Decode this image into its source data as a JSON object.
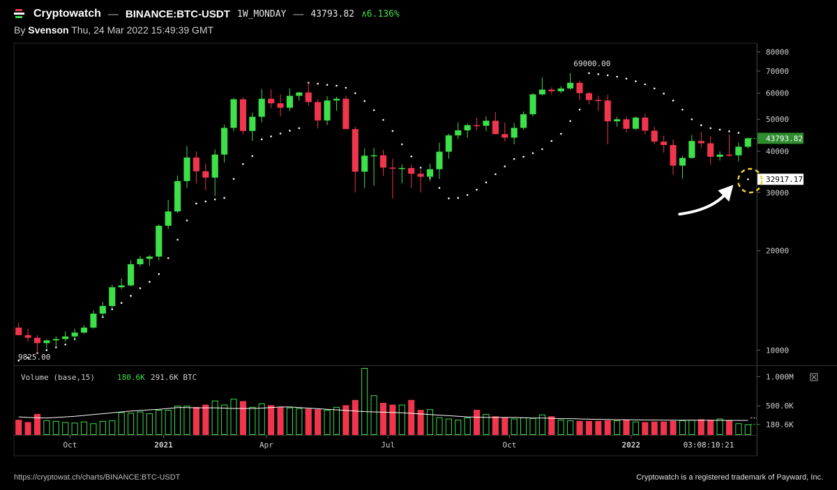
{
  "header": {
    "brand": "Cryptowatch",
    "separator": "—",
    "pair": "BINANCE:BTC-USDT",
    "interval": "1W_MONDAY",
    "price": "43793.82",
    "change": "∧6.136%"
  },
  "byline": {
    "prefix": "By ",
    "author": "Svenson",
    "date": "Thu, 24 Mar 2022 15:49:39 GMT"
  },
  "footer": {
    "url": "https://cryptowat.ch/charts/BINANCE:BTC-USDT",
    "trademark": "Cryptowatch is a registered trademark of Payward, Inc."
  },
  "colors": {
    "up": "#3ee04a",
    "down": "#f0364d",
    "sar": "#ffffff",
    "grid": "#2a2a2a",
    "highlight": "#f2d22e"
  },
  "chart_data": [
    {
      "type": "candlestick",
      "title": "",
      "scale": "log",
      "ylim": [
        9000,
        85000
      ],
      "y_ticks": [
        "80000",
        "70000",
        "60000",
        "50000",
        "40000",
        "30000",
        "20000",
        "10000"
      ],
      "x_ticks": [
        "Oct",
        "2021",
        "Apr",
        "Jul",
        "Oct",
        "2022"
      ],
      "time_label": "03:08:10:21",
      "annotations": {
        "high": "69000.00",
        "low": "9825.00",
        "last_price": "43793.82",
        "sar_price": "32917.17"
      },
      "candles": [
        [
          11700,
          12100,
          11400,
          11100
        ],
        [
          11100,
          11600,
          10600,
          10900
        ],
        [
          10900,
          11100,
          9800,
          10500
        ],
        [
          10500,
          10800,
          10100,
          10700
        ],
        [
          10700,
          11000,
          10300,
          10800
        ],
        [
          10800,
          11400,
          10600,
          11000
        ],
        [
          11000,
          11600,
          10700,
          11300
        ],
        [
          11300,
          11900,
          11200,
          11700
        ],
        [
          11700,
          13200,
          11600,
          12900
        ],
        [
          12900,
          14000,
          12600,
          13600
        ],
        [
          13600,
          15800,
          13400,
          15500
        ],
        [
          15500,
          16500,
          15300,
          15700
        ],
        [
          15700,
          18700,
          15600,
          18200
        ],
        [
          18200,
          19300,
          17900,
          18900
        ],
        [
          18900,
          19400,
          18000,
          19200
        ],
        [
          19200,
          24000,
          18700,
          23800
        ],
        [
          23800,
          28500,
          23300,
          26300
        ],
        [
          26300,
          33800,
          26000,
          32500
        ],
        [
          32500,
          41500,
          31000,
          38300
        ],
        [
          38300,
          40000,
          32000,
          34800
        ],
        [
          34800,
          36800,
          30500,
          33300
        ],
        [
          33300,
          40500,
          29300,
          39100
        ],
        [
          39100,
          48200,
          37000,
          47100
        ],
        [
          47100,
          58000,
          46000,
          57500
        ],
        [
          57500,
          58300,
          45000,
          46100
        ],
        [
          46100,
          52400,
          43000,
          50900
        ],
        [
          50900,
          61800,
          49000,
          57700
        ],
        [
          57700,
          61600,
          54000,
          55900
        ],
        [
          55900,
          59500,
          51000,
          54200
        ],
        [
          54200,
          62000,
          53000,
          58900
        ],
        [
          58900,
          60500,
          57000,
          60300
        ],
        [
          60300,
          64500,
          55000,
          56400
        ],
        [
          56400,
          57500,
          46900,
          49600
        ],
        [
          49600,
          58800,
          48000,
          57000
        ],
        [
          57000,
          58500,
          53000,
          57700
        ],
        [
          57700,
          58800,
          47000,
          46700
        ],
        [
          46700,
          47500,
          30000,
          34700
        ],
        [
          34700,
          40800,
          31000,
          38800
        ],
        [
          38800,
          41000,
          31500,
          38900
        ],
        [
          38900,
          40400,
          33700,
          35700
        ],
        [
          35700,
          38000,
          28800,
          35500
        ],
        [
          35500,
          36500,
          32000,
          35600
        ],
        [
          35600,
          36500,
          31000,
          34200
        ],
        [
          34200,
          35200,
          30000,
          33500
        ],
        [
          33500,
          36700,
          32500,
          35300
        ],
        [
          35300,
          42500,
          33000,
          39900
        ],
        [
          39900,
          45200,
          38000,
          44700
        ],
        [
          44700,
          49000,
          43500,
          46300
        ],
        [
          46300,
          48500,
          44000,
          48000
        ],
        [
          48000,
          50500,
          46500,
          47800
        ],
        [
          47800,
          51000,
          46000,
          49500
        ],
        [
          49500,
          52600,
          45000,
          45100
        ],
        [
          45100,
          48900,
          42800,
          44000
        ],
        [
          44000,
          48800,
          42000,
          47100
        ],
        [
          47100,
          52800,
          46500,
          51800
        ],
        [
          51800,
          60000,
          51000,
          59500
        ],
        [
          59500,
          67000,
          59000,
          61500
        ],
        [
          61500,
          62500,
          59500,
          60800
        ],
        [
          60800,
          63000,
          60000,
          62000
        ],
        [
          62000,
          69000,
          61500,
          64500
        ],
        [
          64500,
          65500,
          57000,
          60000
        ],
        [
          60000,
          60500,
          55500,
          57200
        ],
        [
          57200,
          59000,
          53000,
          57000
        ],
        [
          57000,
          59300,
          42000,
          49300
        ],
        [
          49300,
          50900,
          47500,
          50000
        ],
        [
          50000,
          51000,
          45600,
          46800
        ],
        [
          46800,
          51000,
          46500,
          50600
        ],
        [
          50600,
          52000,
          45000,
          46200
        ],
        [
          46200,
          47500,
          42000,
          42800
        ],
        [
          42800,
          44600,
          39600,
          41800
        ],
        [
          41800,
          43500,
          34000,
          36200
        ],
        [
          36200,
          38800,
          33000,
          38200
        ],
        [
          38200,
          44800,
          38000,
          43000
        ],
        [
          43000,
          45800,
          41000,
          42300
        ],
        [
          42300,
          44500,
          36500,
          38500
        ],
        [
          38500,
          40000,
          37500,
          39100
        ],
        [
          39100,
          45000,
          38500,
          38900
        ],
        [
          38900,
          42500,
          37300,
          41300
        ],
        [
          41300,
          44000,
          40800,
          43800
        ]
      ],
      "sar": [
        [
          0,
          9300
        ],
        [
          1,
          9500
        ],
        [
          2,
          9800
        ],
        [
          3,
          10000
        ],
        [
          4,
          10200
        ],
        [
          5,
          10400
        ],
        [
          6,
          10800
        ],
        [
          7,
          11400
        ],
        [
          8,
          12000
        ],
        [
          9,
          12600
        ],
        [
          10,
          13300
        ],
        [
          11,
          13900
        ],
        [
          12,
          14600
        ],
        [
          13,
          15400
        ],
        [
          14,
          16100
        ],
        [
          15,
          17000
        ],
        [
          16,
          19000
        ],
        [
          17,
          21600
        ],
        [
          18,
          24700
        ],
        [
          19,
          27800
        ],
        [
          20,
          28200
        ],
        [
          21,
          28600
        ],
        [
          22,
          28900
        ],
        [
          23,
          33000
        ],
        [
          24,
          36600
        ],
        [
          25,
          38700
        ],
        [
          26,
          43500
        ],
        [
          27,
          44400
        ],
        [
          28,
          45300
        ],
        [
          29,
          46200
        ],
        [
          30,
          47000
        ],
        [
          31,
          64500
        ],
        [
          32,
          64100
        ],
        [
          33,
          63600
        ],
        [
          34,
          63200
        ],
        [
          35,
          62300
        ],
        [
          36,
          60000
        ],
        [
          37,
          56800
        ],
        [
          38,
          53300
        ],
        [
          39,
          49800
        ],
        [
          40,
          46100
        ],
        [
          41,
          42000
        ],
        [
          42,
          38600
        ],
        [
          43,
          35700
        ],
        [
          44,
          33200
        ],
        [
          45,
          31000
        ],
        [
          46,
          28800
        ],
        [
          47,
          28900
        ],
        [
          48,
          29500
        ],
        [
          49,
          30600
        ],
        [
          50,
          32200
        ],
        [
          51,
          34100
        ],
        [
          52,
          36000
        ],
        [
          53,
          37900
        ],
        [
          54,
          38500
        ],
        [
          55,
          39500
        ],
        [
          56,
          40600
        ],
        [
          57,
          43000
        ],
        [
          58,
          45200
        ],
        [
          59,
          49400
        ],
        [
          60,
          53500
        ],
        [
          61,
          69000
        ],
        [
          62,
          68500
        ],
        [
          63,
          68000
        ],
        [
          64,
          67300
        ],
        [
          65,
          66400
        ],
        [
          66,
          65200
        ],
        [
          67,
          63800
        ],
        [
          68,
          62000
        ],
        [
          69,
          59800
        ],
        [
          70,
          57000
        ],
        [
          71,
          53500
        ],
        [
          72,
          50000
        ],
        [
          73,
          48000
        ],
        [
          74,
          47000
        ],
        [
          75,
          46500
        ],
        [
          76,
          46000
        ],
        [
          77,
          45500
        ],
        [
          78,
          32917
        ]
      ],
      "volume": {
        "label": "Volume (base,15)",
        "value_1": "180.6K",
        "value_2": "291.6K BTC",
        "ylim": [
          0,
          1100000
        ],
        "y_ticks": [
          "1.000M",
          "500.0K",
          "180.6K"
        ],
        "bars": [
          260000,
          220000,
          360000,
          250000,
          240000,
          220000,
          210000,
          230000,
          200000,
          240000,
          250000,
          390000,
          380000,
          400000,
          370000,
          430000,
          430000,
          500000,
          500000,
          480000,
          520000,
          590000,
          520000,
          620000,
          580000,
          480000,
          540000,
          510000,
          480000,
          470000,
          460000,
          450000,
          440000,
          430000,
          480000,
          510000,
          600000,
          1200000,
          680000,
          550000,
          520000,
          520000,
          600000,
          430000,
          440000,
          300000,
          280000,
          260000,
          300000,
          430000,
          360000,
          320000,
          300000,
          280000,
          300000,
          290000,
          350000,
          320000,
          260000,
          250000,
          240000,
          240000,
          240000,
          250000,
          250000,
          260000,
          230000,
          220000,
          230000,
          230000,
          240000,
          250000,
          260000,
          270000,
          260000,
          280000,
          250000,
          200000,
          180600
        ],
        "ma": [
          310000,
          300000,
          295000,
          290000,
          300000,
          310000,
          320000,
          335000,
          350000,
          365000,
          380000,
          395000,
          410000,
          420000,
          430000,
          440000,
          455000,
          470000,
          470000,
          465000,
          465000,
          465000,
          460000,
          455000,
          455000,
          455000,
          460000,
          470000,
          480000,
          480000,
          470000,
          460000,
          450000,
          440000,
          430000,
          420000,
          410000,
          400000,
          395000,
          390000,
          385000,
          380000,
          370000,
          360000,
          350000,
          340000,
          330000,
          320000,
          310000,
          305000,
          300000,
          300000,
          300000,
          300000,
          295000,
          290000,
          290000,
          285000,
          280000,
          280000,
          275000,
          270000,
          268000,
          265000,
          262000,
          260000,
          258000,
          256000,
          255000,
          254000,
          253000,
          252000,
          252000,
          251000,
          251000,
          250000,
          250000,
          250000,
          250000
        ]
      }
    }
  ]
}
